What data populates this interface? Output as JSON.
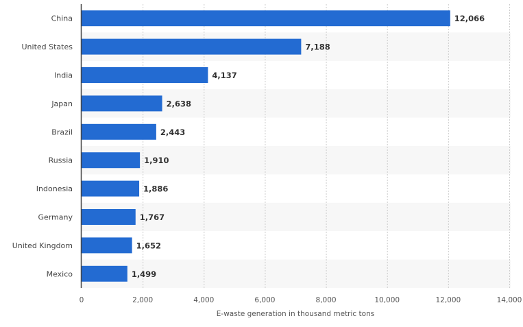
{
  "chart_data": {
    "type": "bar",
    "orientation": "horizontal",
    "categories": [
      "China",
      "United States",
      "India",
      "Japan",
      "Brazil",
      "Russia",
      "Indonesia",
      "Germany",
      "United Kingdom",
      "Mexico"
    ],
    "values": [
      12066,
      7188,
      4137,
      2638,
      2443,
      1910,
      1886,
      1767,
      1652,
      1499
    ],
    "value_labels": [
      "12,066",
      "7,188",
      "4,137",
      "2,638",
      "2,443",
      "1,910",
      "1,886",
      "1,767",
      "1,652",
      "1,499"
    ],
    "xlabel": "E-waste generation in thousand metric tons",
    "ylabel": "",
    "xlim": [
      0,
      14000
    ],
    "xticks": [
      0,
      2000,
      4000,
      6000,
      8000,
      10000,
      12000,
      14000
    ],
    "xtick_labels": [
      "0",
      "2,000",
      "4,000",
      "6,000",
      "8,000",
      "10,000",
      "12,000",
      "14,000"
    ],
    "grid": "vertical dashed",
    "bar_color": "#236bd2",
    "band_color": "#f7f7f7"
  }
}
